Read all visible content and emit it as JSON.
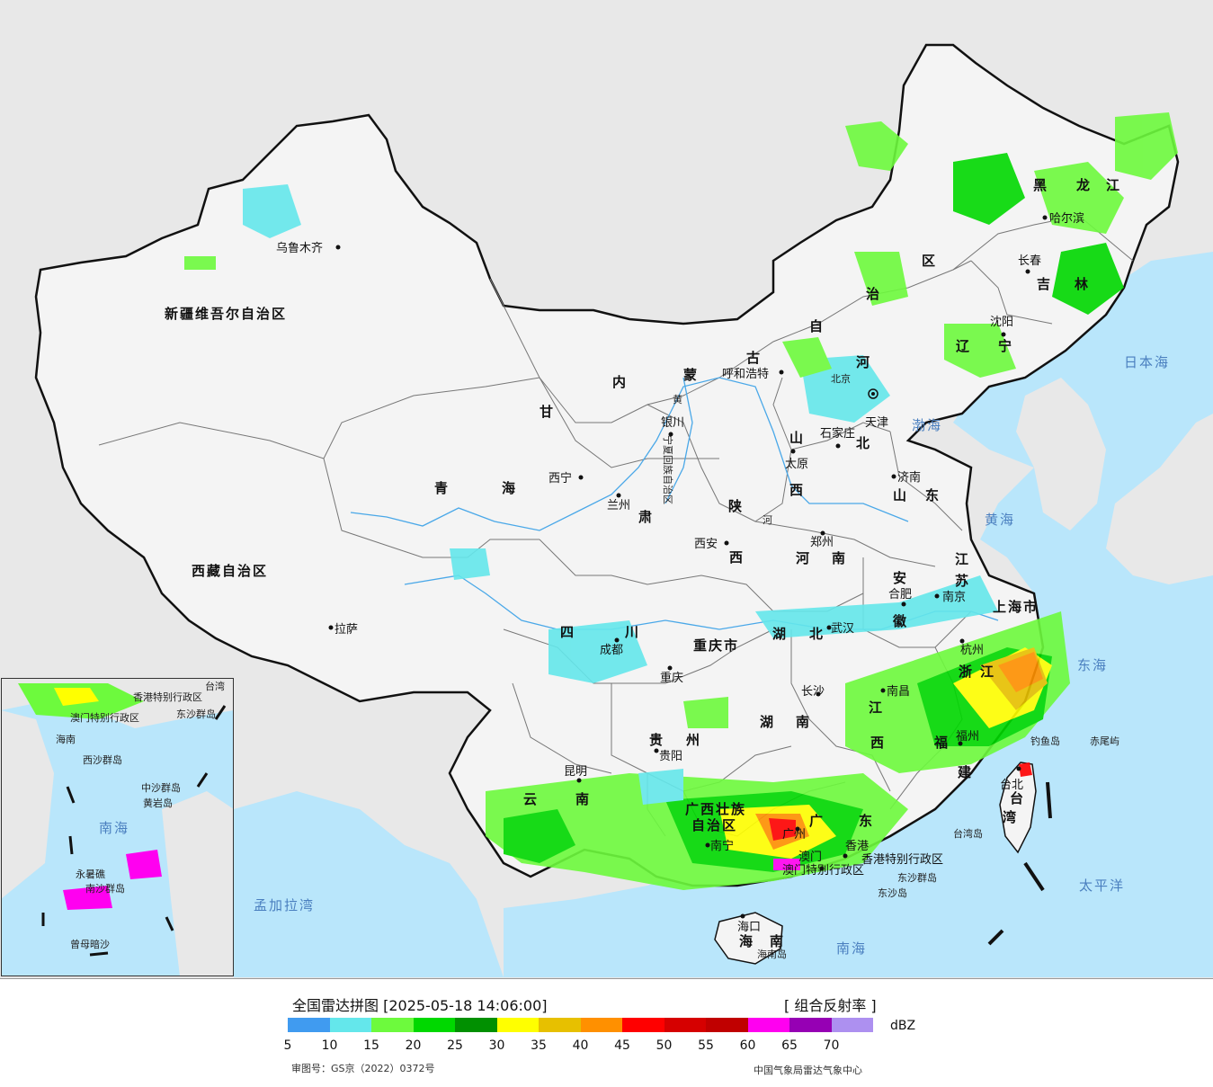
{
  "colors": {
    "ocean": "#b9e6fb",
    "land_china": "#f4f4f4",
    "land_foreign": "#e8e8e8",
    "border": "#111111",
    "province_border": "#777777",
    "river": "#4aa8e8",
    "city_label": "#111111",
    "sea_label": "#4a7fbf"
  },
  "provinces": [
    {
      "id": "xinjiang",
      "label": "新疆维吾尔自治区"
    },
    {
      "id": "xizang",
      "label": "西藏自治区"
    },
    {
      "id": "qinghai_1",
      "label": "青"
    },
    {
      "id": "qinghai_2",
      "label": "海"
    },
    {
      "id": "gansu_1",
      "label": "甘"
    },
    {
      "id": "gansu_2",
      "label": "肃"
    },
    {
      "id": "neimenggu_1",
      "label": "内"
    },
    {
      "id": "neimenggu_2",
      "label": "蒙"
    },
    {
      "id": "neimenggu_3",
      "label": "古"
    },
    {
      "id": "neimenggu_4",
      "label": "自"
    },
    {
      "id": "neimenggu_5",
      "label": "治"
    },
    {
      "id": "neimenggu_6",
      "label": "区"
    },
    {
      "id": "heilongjiang_1",
      "label": "黑"
    },
    {
      "id": "heilongjiang_2",
      "label": "龙"
    },
    {
      "id": "heilongjiang_3",
      "label": "江"
    },
    {
      "id": "jilin_1",
      "label": "吉"
    },
    {
      "id": "jilin_2",
      "label": "林"
    },
    {
      "id": "liaoning_1",
      "label": "辽"
    },
    {
      "id": "liaoning_2",
      "label": "宁"
    },
    {
      "id": "hebei_1",
      "label": "河"
    },
    {
      "id": "hebei_2",
      "label": "北"
    },
    {
      "id": "shanxi_1",
      "label": "山"
    },
    {
      "id": "shanxi_2",
      "label": "西"
    },
    {
      "id": "shandong_1",
      "label": "山"
    },
    {
      "id": "shandong_2",
      "label": "东"
    },
    {
      "id": "shaanxi_1",
      "label": "陕"
    },
    {
      "id": "shaanxi_2",
      "label": "西"
    },
    {
      "id": "henan_1",
      "label": "河"
    },
    {
      "id": "henan_2",
      "label": "南"
    },
    {
      "id": "jiangsu_1",
      "label": "江"
    },
    {
      "id": "jiangsu_2",
      "label": "苏"
    },
    {
      "id": "anhui_1",
      "label": "安"
    },
    {
      "id": "anhui_2",
      "label": "徽"
    },
    {
      "id": "sichuan_1",
      "label": "四"
    },
    {
      "id": "sichuan_2",
      "label": "川"
    },
    {
      "id": "chongqing",
      "label": "重庆市"
    },
    {
      "id": "hubei_1",
      "label": "湖"
    },
    {
      "id": "hubei_2",
      "label": "北"
    },
    {
      "id": "hunan_1",
      "label": "湖"
    },
    {
      "id": "hunan_2",
      "label": "南"
    },
    {
      "id": "jiangxi_1",
      "label": "江"
    },
    {
      "id": "jiangxi_2",
      "label": "西"
    },
    {
      "id": "zhejiang_1",
      "label": "浙"
    },
    {
      "id": "zhejiang_2",
      "label": "江"
    },
    {
      "id": "fujian_1",
      "label": "福"
    },
    {
      "id": "fujian_2",
      "label": "建"
    },
    {
      "id": "guizhou_1",
      "label": "贵"
    },
    {
      "id": "guizhou_2",
      "label": "州"
    },
    {
      "id": "yunnan_1",
      "label": "云"
    },
    {
      "id": "yunnan_2",
      "label": "南"
    },
    {
      "id": "guangxi_1",
      "label": "广西壮族"
    },
    {
      "id": "guangxi_2",
      "label": "自治区"
    },
    {
      "id": "guangdong_1",
      "label": "广"
    },
    {
      "id": "guangdong_2",
      "label": "东"
    },
    {
      "id": "hainan_1",
      "label": "海"
    },
    {
      "id": "hainan_2",
      "label": "南"
    },
    {
      "id": "shanghai",
      "label": "上海市"
    },
    {
      "id": "taiwan_1",
      "label": "台"
    },
    {
      "id": "taiwan_2",
      "label": "湾"
    },
    {
      "id": "ningxia",
      "label": "宁夏回族自治区"
    },
    {
      "id": "tianjin",
      "label": "天津"
    },
    {
      "id": "beijing",
      "label": "北京"
    },
    {
      "id": "hongkong",
      "label": "香港特别行政区"
    },
    {
      "id": "macao",
      "label": "澳门特别行政区"
    }
  ],
  "cities": [
    {
      "id": "wulumuqi",
      "label": "乌鲁木齐"
    },
    {
      "id": "lasa",
      "label": "拉萨"
    },
    {
      "id": "xining",
      "label": "西宁"
    },
    {
      "id": "lanzhou",
      "label": "兰州"
    },
    {
      "id": "yinchuan",
      "label": "银川"
    },
    {
      "id": "huhehaote",
      "label": "呼和浩特"
    },
    {
      "id": "haerbin",
      "label": "哈尔滨"
    },
    {
      "id": "changchun",
      "label": "长春"
    },
    {
      "id": "shenyang",
      "label": "沈阳"
    },
    {
      "id": "shijiazhuang",
      "label": "石家庄"
    },
    {
      "id": "taiyuan",
      "label": "太原"
    },
    {
      "id": "jinan",
      "label": "济南"
    },
    {
      "id": "xian",
      "label": "西安"
    },
    {
      "id": "zhengzhou",
      "label": "郑州"
    },
    {
      "id": "hefei",
      "label": "合肥"
    },
    {
      "id": "nanjing",
      "label": "南京"
    },
    {
      "id": "chengdu",
      "label": "成都"
    },
    {
      "id": "chongqing_c",
      "label": "重庆"
    },
    {
      "id": "wuhan",
      "label": "武汉"
    },
    {
      "id": "changsha",
      "label": "长沙"
    },
    {
      "id": "nanchang",
      "label": "南昌"
    },
    {
      "id": "hangzhou",
      "label": "杭州"
    },
    {
      "id": "fuzhou",
      "label": "福州"
    },
    {
      "id": "guiyang",
      "label": "贵阳"
    },
    {
      "id": "kunming",
      "label": "昆明"
    },
    {
      "id": "nanning",
      "label": "南宁"
    },
    {
      "id": "guangzhou",
      "label": "广州"
    },
    {
      "id": "haikou",
      "label": "海口"
    },
    {
      "id": "taibei",
      "label": "台北"
    },
    {
      "id": "xianggang",
      "label": "香港"
    },
    {
      "id": "aomen",
      "label": "澳门"
    }
  ],
  "seas": [
    {
      "id": "bohai",
      "label": "渤海"
    },
    {
      "id": "huanghai",
      "label": "黄海"
    },
    {
      "id": "donghai",
      "label": "东海"
    },
    {
      "id": "nanhai",
      "label": "南海"
    },
    {
      "id": "taipingyang",
      "label": "太平洋"
    },
    {
      "id": "ribenhai",
      "label": "日本海"
    },
    {
      "id": "mengjialawan",
      "label": "孟加拉湾"
    }
  ],
  "islands": [
    {
      "id": "diaoyudao",
      "label": "钓鱼岛"
    },
    {
      "id": "chiweiyu",
      "label": "赤尾屿"
    },
    {
      "id": "taiwandao",
      "label": "台湾岛"
    },
    {
      "id": "dongshaqundao",
      "label": "东沙群岛"
    },
    {
      "id": "dongshadao",
      "label": "东沙岛"
    },
    {
      "id": "hainandao",
      "label": "海南岛"
    }
  ],
  "rivers": [
    {
      "id": "huanghe_label",
      "label": "黄"
    },
    {
      "id": "hehe_label",
      "label": "河"
    }
  ],
  "inset": {
    "labels": [
      {
        "id": "in_hainan",
        "label": "海南"
      },
      {
        "id": "in_dongsha",
        "label": "东沙群岛"
      },
      {
        "id": "in_xisha",
        "label": "西沙群岛"
      },
      {
        "id": "in_zhongsha",
        "label": "中沙群岛"
      },
      {
        "id": "in_huangyan",
        "label": "黄岩岛"
      },
      {
        "id": "in_nanhai",
        "label": "南海"
      },
      {
        "id": "in_nansha",
        "label": "南沙群岛"
      },
      {
        "id": "in_yongshu",
        "label": "永暑礁"
      },
      {
        "id": "in_zengmu",
        "label": "曾母暗沙"
      },
      {
        "id": "in_taiwan",
        "label": "台湾"
      },
      {
        "id": "in_hk",
        "label": "香港特别行政区"
      },
      {
        "id": "in_mo",
        "label": "澳门特别行政区"
      }
    ]
  },
  "legend": {
    "title": "全国雷达拼图 [2025-05-18 14:06:00]",
    "product": "[ 组合反射率 ]",
    "unit": "dBZ",
    "scale": [
      {
        "value": "5",
        "color": "#409bf0"
      },
      {
        "value": "10",
        "color": "#64e7eb"
      },
      {
        "value": "15",
        "color": "#6dfa3d"
      },
      {
        "value": "20",
        "color": "#00d800"
      },
      {
        "value": "25",
        "color": "#019001"
      },
      {
        "value": "30",
        "color": "#ffff00"
      },
      {
        "value": "35",
        "color": "#e7c000"
      },
      {
        "value": "40",
        "color": "#ff9000"
      },
      {
        "value": "45",
        "color": "#ff0000"
      },
      {
        "value": "50",
        "color": "#d60000"
      },
      {
        "value": "55",
        "color": "#c00000"
      },
      {
        "value": "60",
        "color": "#ff00f0"
      },
      {
        "value": "65",
        "color": "#9600b4"
      },
      {
        "value": "70",
        "color": "#ad90f0"
      }
    ],
    "approval": "审图号：GS京（2022）0372号",
    "producer": "中国气象局雷达气象中心"
  }
}
